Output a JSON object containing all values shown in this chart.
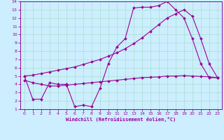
{
  "bg_color": "#cceeff",
  "grid_color": "#aaddcc",
  "line_color": "#990099",
  "xlabel": "Windchill (Refroidissement éolien,°C)",
  "xlim": [
    -0.5,
    23.5
  ],
  "ylim": [
    1,
    14
  ],
  "xticks": [
    0,
    1,
    2,
    3,
    4,
    5,
    6,
    7,
    8,
    9,
    10,
    11,
    12,
    13,
    14,
    15,
    16,
    17,
    18,
    19,
    20,
    21,
    22,
    23
  ],
  "yticks": [
    1,
    2,
    3,
    4,
    5,
    6,
    7,
    8,
    9,
    10,
    11,
    12,
    13,
    14
  ],
  "line1_x": [
    0,
    1,
    2,
    3,
    4,
    5,
    6,
    7,
    8,
    9,
    10,
    11,
    12,
    13,
    14,
    15,
    16,
    17,
    18,
    19,
    20,
    21,
    22,
    23
  ],
  "line1_y": [
    5.0,
    2.2,
    2.2,
    4.2,
    4.0,
    4.0,
    1.3,
    1.5,
    1.3,
    3.5,
    6.5,
    8.5,
    9.5,
    13.2,
    13.3,
    13.3,
    13.5,
    14.0,
    13.0,
    12.0,
    9.5,
    6.5,
    4.8,
    4.8
  ],
  "line2_x": [
    0,
    1,
    2,
    3,
    4,
    5,
    6,
    7,
    8,
    9,
    10,
    11,
    12,
    13,
    14,
    15,
    16,
    17,
    18,
    19,
    20,
    21,
    22,
    23
  ],
  "line2_y": [
    5.0,
    5.1,
    5.3,
    5.5,
    5.7,
    5.9,
    6.1,
    6.4,
    6.7,
    7.0,
    7.4,
    7.8,
    8.3,
    8.9,
    9.6,
    10.4,
    11.2,
    12.0,
    12.5,
    13.0,
    12.2,
    9.5,
    6.5,
    4.8
  ],
  "line3_x": [
    0,
    1,
    2,
    3,
    4,
    5,
    6,
    7,
    8,
    9,
    10,
    11,
    12,
    13,
    14,
    15,
    16,
    17,
    18,
    19,
    20,
    21,
    22,
    23
  ],
  "line3_y": [
    4.5,
    4.2,
    4.0,
    3.8,
    3.8,
    3.9,
    4.0,
    4.1,
    4.2,
    4.3,
    4.4,
    4.5,
    4.6,
    4.7,
    4.8,
    4.85,
    4.9,
    5.0,
    5.0,
    5.05,
    5.0,
    4.95,
    4.9,
    4.8
  ],
  "label_fontsize": 5,
  "tick_fontsize": 4.5
}
